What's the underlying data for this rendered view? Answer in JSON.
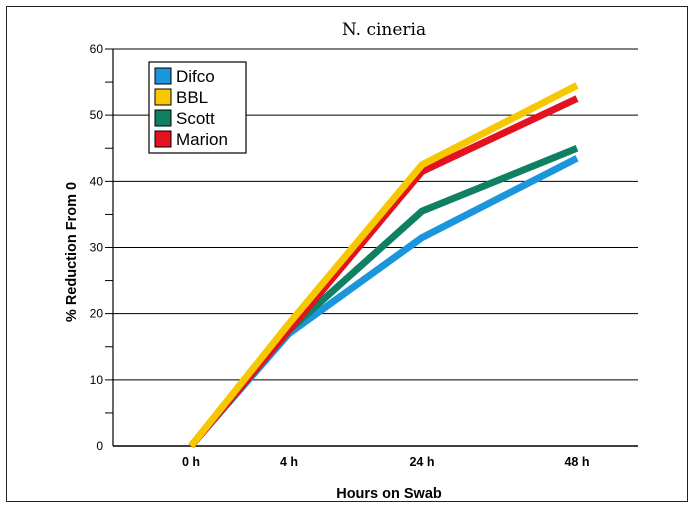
{
  "chart_data": {
    "type": "line",
    "title": "N. cineria",
    "xlabel": "Hours on Swab",
    "ylabel": "% Reduction From 0",
    "categories": [
      "0 h",
      "4 h",
      "24 h",
      "48 h"
    ],
    "ylim": [
      0,
      60
    ],
    "yticks": [
      "0",
      "10",
      "20",
      "30",
      "40",
      "50",
      "60"
    ],
    "grid": "horizontal major lines",
    "legend_position": "top-left",
    "series": [
      {
        "name": "Difco",
        "color": "#1b95dc",
        "values": [
          0,
          17,
          31.5,
          43.5
        ]
      },
      {
        "name": "BBL",
        "color": "#f7c700",
        "values": [
          0,
          18.5,
          42.5,
          54.5
        ]
      },
      {
        "name": "Scott",
        "color": "#0f8062",
        "values": [
          0,
          17.5,
          35.5,
          45
        ]
      },
      {
        "name": "Marion",
        "color": "#e3121e",
        "values": [
          0,
          17.5,
          41.5,
          52.5
        ]
      }
    ],
    "draw_order": [
      "Difco",
      "Scott",
      "Marion",
      "BBL"
    ]
  }
}
